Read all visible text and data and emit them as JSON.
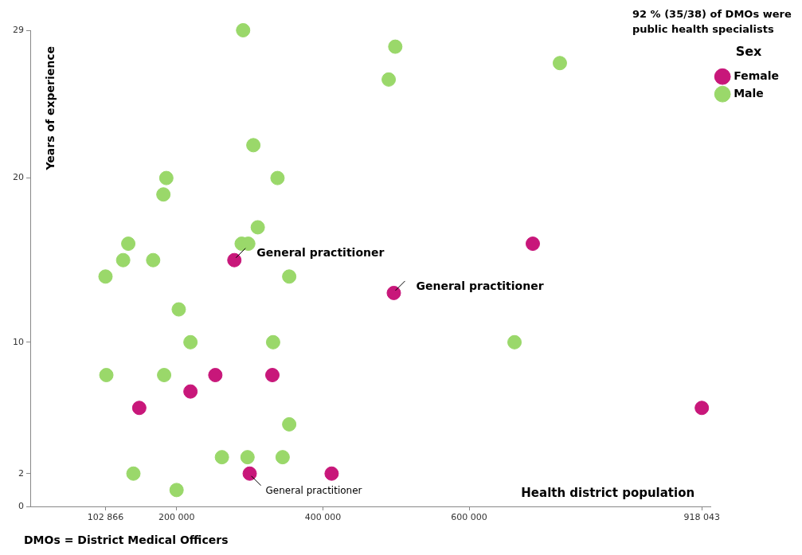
{
  "chart_data": {
    "type": "scatter",
    "title": "92 % (35/38) of DMOs were public health specialists",
    "xlabel": "Health district population",
    "ylabel": "Years of experience",
    "legend_title": "Sex",
    "legend": "top right",
    "grid": false,
    "marker": "circle",
    "xlim": [
      0,
      930000
    ],
    "ylim": [
      0,
      29
    ],
    "xticks": [
      {
        "value": 102866,
        "label": "102 866"
      },
      {
        "value": 200000,
        "label": "200 000"
      },
      {
        "value": 400000,
        "label": "400 000"
      },
      {
        "value": 600000,
        "label": "600 000"
      },
      {
        "value": 918043,
        "label": "918 043"
      }
    ],
    "yticks": [
      0,
      2,
      10,
      20,
      29
    ],
    "series": [
      {
        "name": "Female",
        "color": "#c8177a",
        "x": [
          279000,
          497000,
          687000,
          253000,
          331000,
          219000,
          149000,
          918043,
          300000,
          412000
        ],
        "values": [
          15,
          13,
          16,
          8,
          8,
          7,
          6,
          6,
          2,
          2
        ]
      },
      {
        "name": "Male",
        "color": "#9ad86a",
        "x": [
          291000,
          499000,
          490000,
          724000,
          305000,
          186000,
          182000,
          338000,
          311000,
          134000,
          289000,
          298000,
          127000,
          168000,
          102866,
          354000,
          203000,
          219000,
          332000,
          662000,
          104000,
          183000,
          354000,
          262000,
          297000,
          345000,
          141000,
          200000
        ],
        "values": [
          29,
          28,
          26,
          27,
          22,
          20,
          19,
          20,
          17,
          16,
          16,
          16,
          15,
          15,
          14,
          14,
          12,
          10,
          10,
          10,
          8,
          8,
          5,
          3,
          3,
          3,
          2,
          1
        ]
      }
    ],
    "annotations": [
      {
        "text": "General practitioner",
        "x": 279000,
        "y": 15
      },
      {
        "text": "General practitioner",
        "x": 497000,
        "y": 13
      },
      {
        "text": "General practitioner",
        "x": 300000,
        "y": 2
      },
      "DMOs = District Medical Officers"
    ]
  }
}
